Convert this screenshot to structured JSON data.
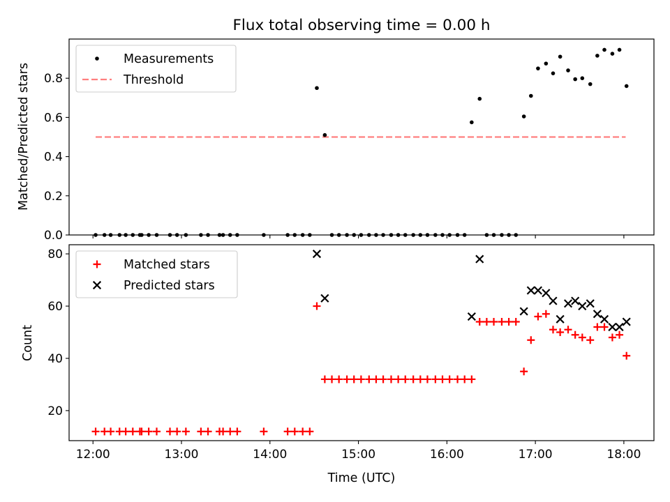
{
  "chart_data": [
    {
      "type": "scatter",
      "title": "Flux total observing time = 0.00 h",
      "xlabel": "",
      "ylabel": "Matched/Predicted stars",
      "ylim": [
        0,
        1.0
      ],
      "yticks": [
        0.0,
        0.2,
        0.4,
        0.6,
        0.8
      ],
      "ytick_labels": [
        "0.0",
        "0.2",
        "0.4",
        "0.6",
        "0.8"
      ],
      "xlim_hours": [
        11.73,
        18.34
      ],
      "xticks_hours": [
        12,
        13,
        14,
        15,
        16,
        17,
        18
      ],
      "xtick_labels": [
        "12:00",
        "13:00",
        "14:00",
        "15:00",
        "16:00",
        "17:00",
        "18:00"
      ],
      "legend": {
        "placement": "top-left",
        "entries": [
          "Measurements",
          "Threshold"
        ]
      },
      "threshold": {
        "name": "Threshold",
        "y": 0.5,
        "x_range_hours": [
          12.03,
          18.02
        ],
        "color": "#ff7f7f"
      },
      "series": [
        {
          "name": "Measurements",
          "marker": "dot",
          "color": "#000000",
          "points": [
            [
              12.03,
              0
            ],
            [
              12.13,
              0
            ],
            [
              12.2,
              0
            ],
            [
              12.3,
              0
            ],
            [
              12.37,
              0
            ],
            [
              12.45,
              0
            ],
            [
              12.53,
              0
            ],
            [
              12.55,
              0
            ],
            [
              12.63,
              0
            ],
            [
              12.72,
              0
            ],
            [
              12.87,
              0
            ],
            [
              12.95,
              0
            ],
            [
              13.05,
              0
            ],
            [
              13.22,
              0
            ],
            [
              13.3,
              0
            ],
            [
              13.43,
              0
            ],
            [
              13.47,
              0
            ],
            [
              13.55,
              0
            ],
            [
              13.63,
              0
            ],
            [
              13.93,
              0
            ],
            [
              14.2,
              0
            ],
            [
              14.28,
              0
            ],
            [
              14.37,
              0
            ],
            [
              14.45,
              0
            ],
            [
              14.53,
              0.75
            ],
            [
              14.62,
              0.51
            ],
            [
              14.7,
              0
            ],
            [
              14.78,
              0
            ],
            [
              14.87,
              0
            ],
            [
              14.95,
              0
            ],
            [
              15.03,
              0
            ],
            [
              15.12,
              0
            ],
            [
              15.2,
              0
            ],
            [
              15.28,
              0
            ],
            [
              15.37,
              0
            ],
            [
              15.45,
              0
            ],
            [
              15.53,
              0
            ],
            [
              15.62,
              0
            ],
            [
              15.7,
              0
            ],
            [
              15.78,
              0
            ],
            [
              15.87,
              0
            ],
            [
              15.95,
              0
            ],
            [
              16.03,
              0
            ],
            [
              16.12,
              0
            ],
            [
              16.2,
              0
            ],
            [
              16.28,
              0.575
            ],
            [
              16.37,
              0.695
            ],
            [
              16.45,
              0
            ],
            [
              16.53,
              0
            ],
            [
              16.62,
              0
            ],
            [
              16.7,
              0
            ],
            [
              16.78,
              0
            ],
            [
              16.87,
              0.605
            ],
            [
              16.95,
              0.71
            ],
            [
              17.03,
              0.85
            ],
            [
              17.12,
              0.875
            ],
            [
              17.2,
              0.825
            ],
            [
              17.28,
              0.91
            ],
            [
              17.37,
              0.84
            ],
            [
              17.45,
              0.795
            ],
            [
              17.53,
              0.8
            ],
            [
              17.62,
              0.77
            ],
            [
              17.7,
              0.915
            ],
            [
              17.78,
              0.945
            ],
            [
              17.87,
              0.925
            ],
            [
              17.95,
              0.945
            ],
            [
              18.03,
              0.76
            ]
          ]
        }
      ]
    },
    {
      "type": "scatter",
      "title": "",
      "xlabel": "Time (UTC)",
      "ylabel": "Count",
      "ylim": [
        8.5,
        83.5
      ],
      "yticks": [
        20,
        40,
        60,
        80
      ],
      "ytick_labels": [
        "20",
        "40",
        "60",
        "80"
      ],
      "xlim_hours": [
        11.73,
        18.34
      ],
      "xticks_hours": [
        12,
        13,
        14,
        15,
        16,
        17,
        18
      ],
      "xtick_labels": [
        "12:00",
        "13:00",
        "14:00",
        "15:00",
        "16:00",
        "17:00",
        "18:00"
      ],
      "legend": {
        "placement": "top-left",
        "entries": [
          "Matched stars",
          "Predicted stars"
        ]
      },
      "series": [
        {
          "name": "Matched stars",
          "marker": "plus",
          "color": "#ff0000",
          "points": [
            [
              12.03,
              12
            ],
            [
              12.13,
              12
            ],
            [
              12.2,
              12
            ],
            [
              12.3,
              12
            ],
            [
              12.37,
              12
            ],
            [
              12.45,
              12
            ],
            [
              12.53,
              12
            ],
            [
              12.55,
              12
            ],
            [
              12.63,
              12
            ],
            [
              12.72,
              12
            ],
            [
              12.87,
              12
            ],
            [
              12.95,
              12
            ],
            [
              13.05,
              12
            ],
            [
              13.22,
              12
            ],
            [
              13.3,
              12
            ],
            [
              13.43,
              12
            ],
            [
              13.47,
              12
            ],
            [
              13.55,
              12
            ],
            [
              13.63,
              12
            ],
            [
              13.93,
              12
            ],
            [
              14.2,
              12
            ],
            [
              14.28,
              12
            ],
            [
              14.37,
              12
            ],
            [
              14.45,
              12
            ],
            [
              14.53,
              60
            ],
            [
              14.62,
              32
            ],
            [
              14.7,
              32
            ],
            [
              14.78,
              32
            ],
            [
              14.87,
              32
            ],
            [
              14.95,
              32
            ],
            [
              15.03,
              32
            ],
            [
              15.12,
              32
            ],
            [
              15.2,
              32
            ],
            [
              15.28,
              32
            ],
            [
              15.37,
              32
            ],
            [
              15.45,
              32
            ],
            [
              15.53,
              32
            ],
            [
              15.62,
              32
            ],
            [
              15.7,
              32
            ],
            [
              15.78,
              32
            ],
            [
              15.87,
              32
            ],
            [
              15.95,
              32
            ],
            [
              16.03,
              32
            ],
            [
              16.12,
              32
            ],
            [
              16.2,
              32
            ],
            [
              16.28,
              32
            ],
            [
              16.37,
              54
            ],
            [
              16.45,
              54
            ],
            [
              16.53,
              54
            ],
            [
              16.62,
              54
            ],
            [
              16.7,
              54
            ],
            [
              16.78,
              54
            ],
            [
              16.87,
              35
            ],
            [
              16.95,
              47
            ],
            [
              17.03,
              56
            ],
            [
              17.12,
              57
            ],
            [
              17.2,
              51
            ],
            [
              17.28,
              50
            ],
            [
              17.37,
              51
            ],
            [
              17.45,
              49
            ],
            [
              17.53,
              48
            ],
            [
              17.62,
              47
            ],
            [
              17.7,
              52
            ],
            [
              17.78,
              52
            ],
            [
              17.87,
              48
            ],
            [
              17.95,
              49
            ],
            [
              18.03,
              41
            ]
          ]
        },
        {
          "name": "Predicted stars",
          "marker": "x",
          "color": "#000000",
          "points": [
            [
              14.53,
              80
            ],
            [
              14.62,
              63
            ],
            [
              16.28,
              56
            ],
            [
              16.37,
              78
            ],
            [
              16.87,
              58
            ],
            [
              16.95,
              66
            ],
            [
              17.03,
              66
            ],
            [
              17.12,
              65
            ],
            [
              17.2,
              62
            ],
            [
              17.28,
              55
            ],
            [
              17.37,
              61
            ],
            [
              17.45,
              62
            ],
            [
              17.53,
              60
            ],
            [
              17.62,
              61
            ],
            [
              17.7,
              57
            ],
            [
              17.78,
              55
            ],
            [
              17.87,
              52
            ],
            [
              17.95,
              52
            ],
            [
              18.03,
              54
            ]
          ]
        }
      ]
    }
  ]
}
